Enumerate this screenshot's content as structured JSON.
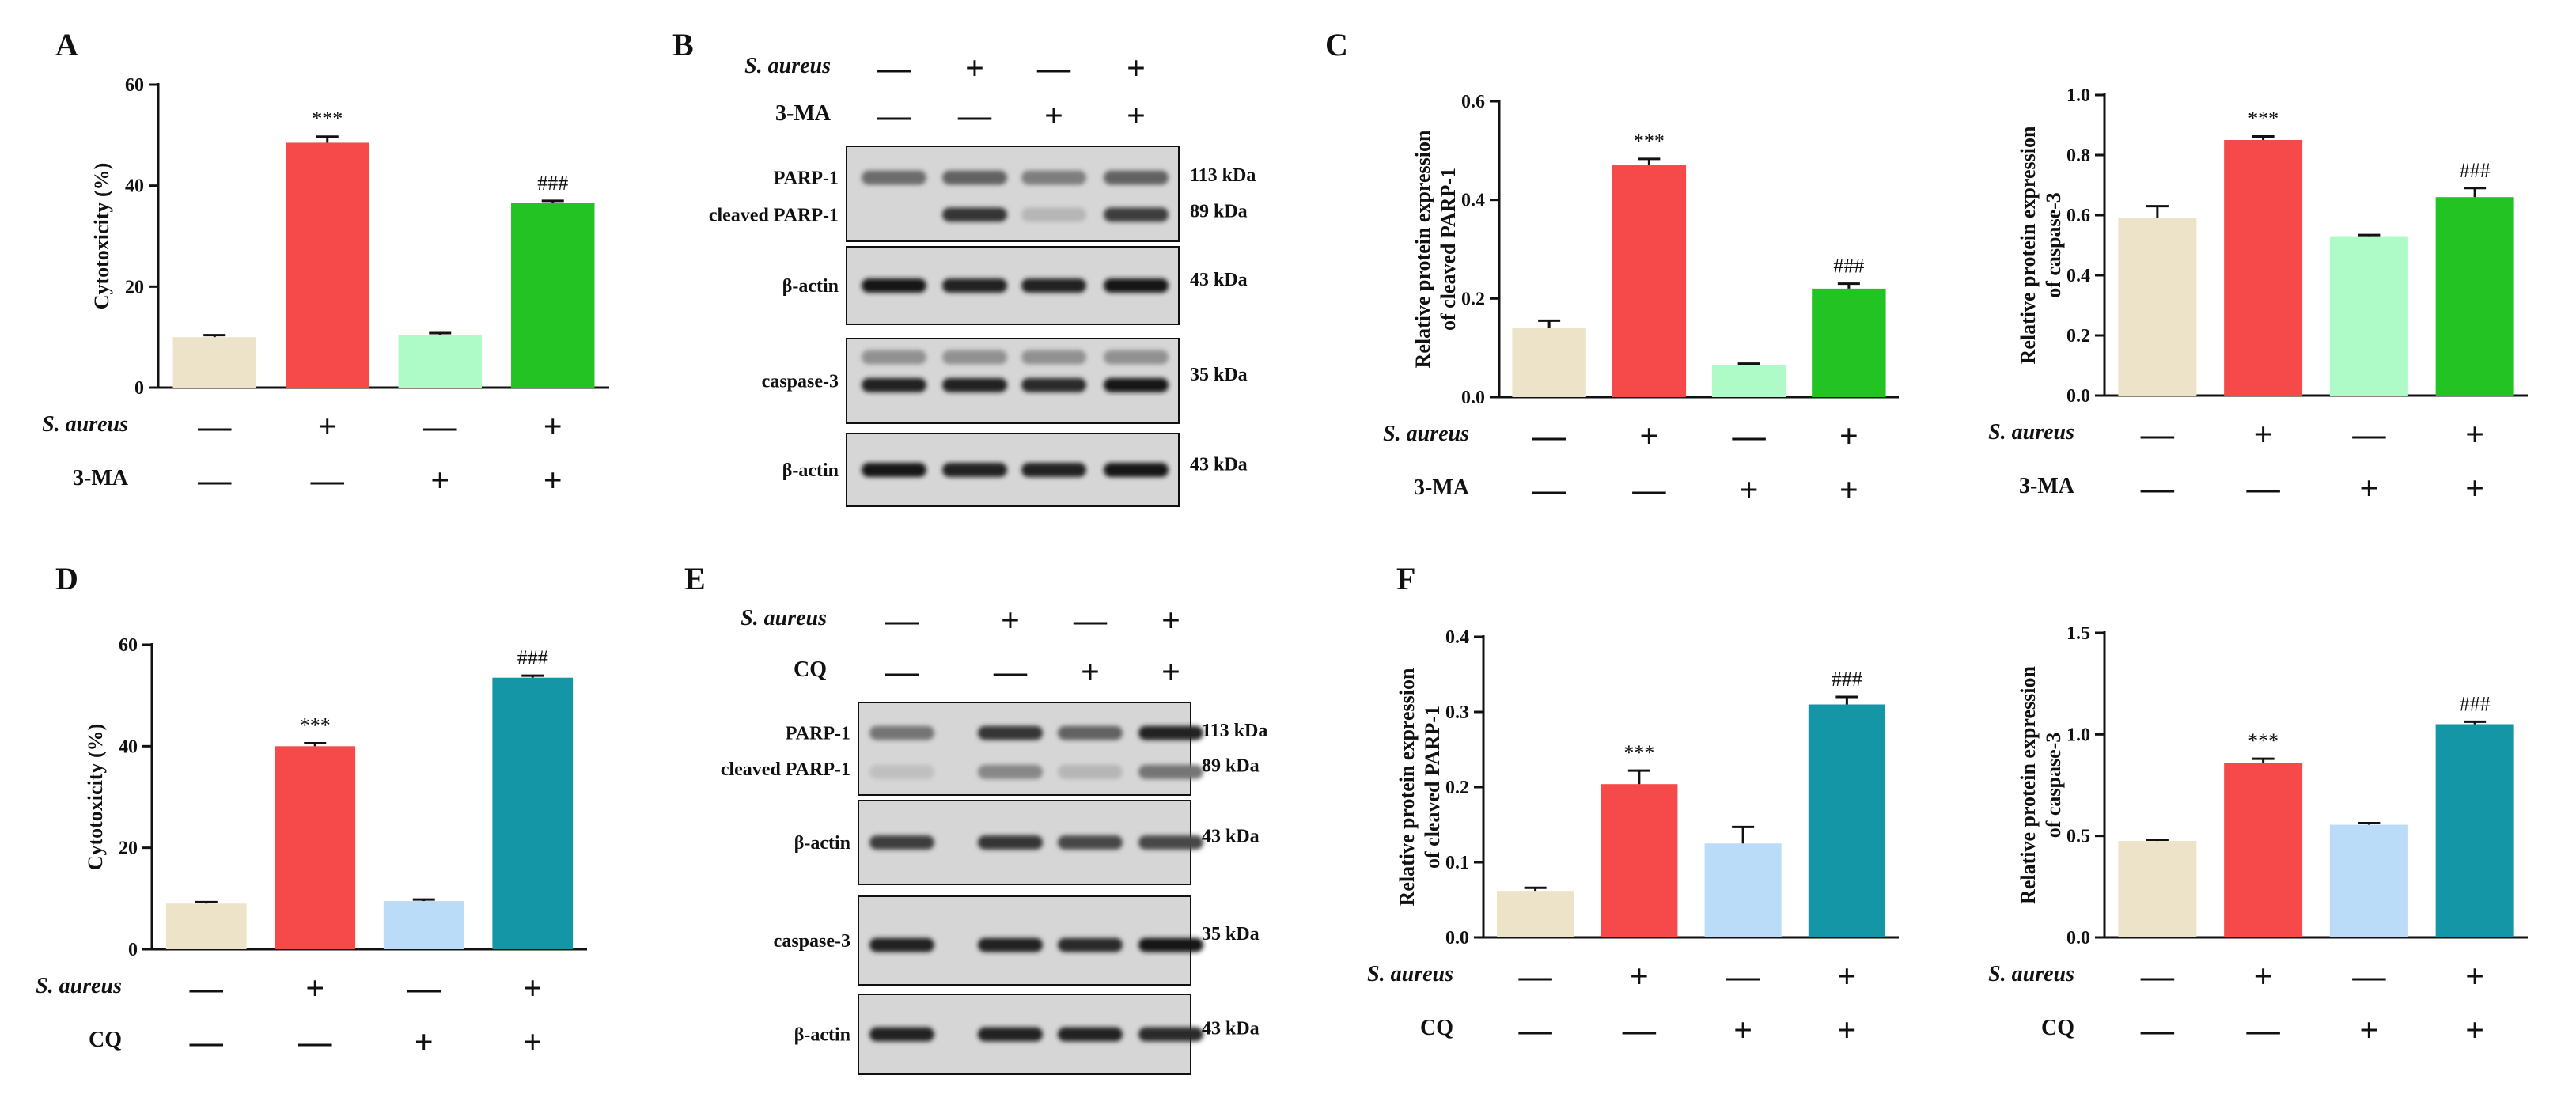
{
  "panels": [
    {
      "id": "A",
      "letter": "A",
      "lx": 70,
      "ly": 70
    },
    {
      "id": "B",
      "letter": "B",
      "lx": 850,
      "ly": 70
    },
    {
      "id": "C",
      "letter": "C",
      "lx": 1675,
      "ly": 70
    },
    {
      "id": "D",
      "letter": "D",
      "lx": 70,
      "ly": 745
    },
    {
      "id": "E",
      "letter": "E",
      "lx": 865,
      "ly": 745
    },
    {
      "id": "F",
      "letter": "F",
      "lx": 1765,
      "ly": 745
    }
  ],
  "chart_data": [
    {
      "type": "bar",
      "panel": "A",
      "ylabel": "Cytotoxicity (%)",
      "ylim": [
        0,
        60
      ],
      "yticks": [
        "0",
        "20",
        "40",
        "60"
      ],
      "values": [
        10,
        48.5,
        10.5,
        36.5
      ],
      "errors": [
        0.4,
        1.2,
        0.3,
        0.5
      ],
      "colors": [
        "#EDE3C8",
        "#F64A4A",
        "#AEFBC8",
        "#22C322"
      ],
      "annotations": [
        "",
        "***",
        "",
        "###"
      ],
      "rows": [
        {
          "label": "S. aureus",
          "italic": true,
          "signs": [
            "—",
            "+",
            "—",
            "+"
          ]
        },
        {
          "label": "3-MA",
          "italic": false,
          "signs": [
            "—",
            "—",
            "+",
            "+"
          ]
        }
      ],
      "box": {
        "x0": 200,
        "x1": 770,
        "y0": 107,
        "y1": 490
      }
    },
    {
      "type": "bar",
      "panel": "C-left",
      "ylabel": [
        "Relative protein expression",
        "of cleaved PARP-1"
      ],
      "ylim": [
        0,
        0.6
      ],
      "yticks": [
        "0.0",
        "0.2",
        "0.4",
        "0.6"
      ],
      "values": [
        0.14,
        0.47,
        0.065,
        0.22
      ],
      "errors": [
        0.015,
        0.013,
        0.003,
        0.01
      ],
      "colors": [
        "#EDE3C8",
        "#F64A4A",
        "#AEFBC8",
        "#22C322"
      ],
      "annotations": [
        "",
        "***",
        "",
        "###"
      ],
      "rows": [
        {
          "label": "S. aureus",
          "italic": true,
          "signs": [
            "—",
            "+",
            "—",
            "+"
          ]
        },
        {
          "label": "3-MA",
          "italic": false,
          "signs": [
            "—",
            "—",
            "+",
            "+"
          ]
        }
      ],
      "box": {
        "x0": 1895,
        "x1": 2400,
        "y0": 128,
        "y1": 502
      }
    },
    {
      "type": "bar",
      "panel": "C-right",
      "ylabel": [
        "Relative protein expression",
        "of caspase-3"
      ],
      "ylim": [
        0,
        1.0
      ],
      "yticks": [
        "0.0",
        "0.2",
        "0.4",
        "0.6",
        "0.8",
        "1.0"
      ],
      "values": [
        0.59,
        0.85,
        0.53,
        0.66
      ],
      "errors": [
        0.04,
        0.012,
        0.004,
        0.03
      ],
      "colors": [
        "#EDE3C8",
        "#F64A4A",
        "#AEFBC8",
        "#22C322"
      ],
      "annotations": [
        "",
        "***",
        "",
        "###"
      ],
      "rows": [
        {
          "label": "S. aureus",
          "italic": true,
          "signs": [
            "—",
            "+",
            "—",
            "+"
          ]
        },
        {
          "label": "3-MA",
          "italic": false,
          "signs": [
            "—",
            "—",
            "+",
            "+"
          ]
        }
      ],
      "box": {
        "x0": 2660,
        "x1": 3195,
        "y0": 120,
        "y1": 500
      }
    },
    {
      "type": "bar",
      "panel": "D",
      "ylabel": "Cytotoxicity (%)",
      "ylim": [
        0,
        60
      ],
      "yticks": [
        "0",
        "20",
        "40",
        "60"
      ],
      "values": [
        9,
        40,
        9.5,
        53.5
      ],
      "errors": [
        0.3,
        0.6,
        0.3,
        0.4
      ],
      "colors": [
        "#EDE3C8",
        "#F64A4A",
        "#BBDCF8",
        "#1596A6"
      ],
      "annotations": [
        "",
        "***",
        "",
        "###"
      ],
      "rows": [
        {
          "label": "S. aureus",
          "italic": true,
          "signs": [
            "—",
            "+",
            "—",
            "+"
          ]
        },
        {
          "label": "CQ",
          "italic": false,
          "signs": [
            "—",
            "—",
            "+",
            "+"
          ]
        }
      ],
      "box": {
        "x0": 192,
        "x1": 742,
        "y0": 815,
        "y1": 1200
      }
    },
    {
      "type": "bar",
      "panel": "F-left",
      "ylabel": [
        "Relative protein expression",
        "of cleaved PARP-1"
      ],
      "ylim": [
        0,
        0.4
      ],
      "yticks": [
        "0.0",
        "0.1",
        "0.2",
        "0.3",
        "0.4"
      ],
      "values": [
        0.062,
        0.204,
        0.125,
        0.31
      ],
      "errors": [
        0.004,
        0.018,
        0.022,
        0.01
      ],
      "colors": [
        "#EDE3C8",
        "#F64A4A",
        "#BBDCF8",
        "#1596A6"
      ],
      "annotations": [
        "",
        "***",
        "",
        "###"
      ],
      "rows": [
        {
          "label": "S. aureus",
          "italic": true,
          "signs": [
            "—",
            "+",
            "—",
            "+"
          ]
        },
        {
          "label": "CQ",
          "italic": false,
          "signs": [
            "—",
            "—",
            "+",
            "+"
          ]
        }
      ],
      "box": {
        "x0": 1875,
        "x1": 2400,
        "y0": 805,
        "y1": 1185
      }
    },
    {
      "type": "bar",
      "panel": "F-right",
      "ylabel": [
        "Relative protein expression",
        "of caspase-3"
      ],
      "ylim": [
        0,
        1.5
      ],
      "yticks": [
        "0.0",
        "0.5",
        "1.0",
        "1.5"
      ],
      "values": [
        0.475,
        0.86,
        0.555,
        1.05
      ],
      "errors": [
        0.006,
        0.02,
        0.008,
        0.012
      ],
      "colors": [
        "#EDE3C8",
        "#F64A4A",
        "#BBDCF8",
        "#1596A6"
      ],
      "annotations": [
        "",
        "***",
        "",
        "###"
      ],
      "rows": [
        {
          "label": "S. aureus",
          "italic": true,
          "signs": [
            "—",
            "+",
            "—",
            "+"
          ]
        },
        {
          "label": "CQ",
          "italic": false,
          "signs": [
            "—",
            "—",
            "+",
            "+"
          ]
        }
      ],
      "box": {
        "x0": 2660,
        "x1": 3195,
        "y0": 800,
        "y1": 1185
      }
    }
  ],
  "blots": [
    {
      "panel": "B",
      "header": [
        {
          "label": "S. aureus",
          "italic": true,
          "signs": [
            "—",
            "+",
            "—",
            "+"
          ]
        },
        {
          "label": "3-MA",
          "italic": false,
          "signs": [
            "—",
            "—",
            "+",
            "+"
          ]
        }
      ],
      "header_lx": 1050,
      "header_ys": [
        92,
        152
      ],
      "lane_xs": [
        1130,
        1232,
        1332,
        1436
      ],
      "bx0": 1070,
      "bx1": 1490,
      "strips": [
        {
          "labels": [
            "PARP-1",
            "cleaved PARP-1"
          ],
          "kda": [
            "113 kDa",
            "89 kDa"
          ],
          "y0": 185,
          "y1": 305,
          "bands": [
            {
              "rel": 0.33,
              "int": [
                0.5,
                0.55,
                0.4,
                0.55
              ]
            },
            {
              "rel": 0.72,
              "int": [
                0.0,
                0.8,
                0.1,
                0.75
              ]
            }
          ]
        },
        {
          "labels": [
            "β-actin"
          ],
          "kda": [
            "43 kDa"
          ],
          "y0": 312,
          "y1": 410,
          "bands": [
            {
              "rel": 0.5,
              "int": [
                0.95,
                0.9,
                0.9,
                0.95
              ]
            }
          ]
        },
        {
          "labels": [
            "caspase-3"
          ],
          "kda": [
            "35 kDa"
          ],
          "y0": 428,
          "y1": 535,
          "bands": [
            {
              "rel": 0.22,
              "int": [
                0.3,
                0.3,
                0.3,
                0.3
              ]
            },
            {
              "rel": 0.55,
              "int": [
                0.9,
                0.9,
                0.85,
                0.95
              ]
            }
          ]
        },
        {
          "labels": [
            "β-actin"
          ],
          "kda": [
            "43 kDa"
          ],
          "y0": 548,
          "y1": 640,
          "bands": [
            {
              "rel": 0.5,
              "int": [
                0.95,
                0.9,
                0.9,
                0.95
              ]
            }
          ]
        }
      ]
    },
    {
      "panel": "E",
      "header": [
        {
          "label": "S. aureus",
          "italic": true,
          "signs": [
            "—",
            "+",
            "—",
            "+"
          ]
        },
        {
          "label": "CQ",
          "italic": false,
          "signs": [
            "—",
            "—",
            "+",
            "+"
          ]
        }
      ],
      "header_lx": 1045,
      "header_ys": [
        790,
        855
      ],
      "lane_xs": [
        1140,
        1277,
        1378,
        1480
      ],
      "bx0": 1085,
      "bx1": 1505,
      "strips": [
        {
          "labels": [
            "PARP-1",
            "cleaved PARP-1"
          ],
          "kda": [
            "113 kDa",
            "89 kDa"
          ],
          "y0": 888,
          "y1": 1005,
          "bands": [
            {
              "rel": 0.33,
              "int": [
                0.45,
                0.8,
                0.55,
                0.9
              ]
            },
            {
              "rel": 0.75,
              "int": [
                0.05,
                0.35,
                0.1,
                0.45
              ]
            }
          ]
        },
        {
          "labels": [
            "β-actin"
          ],
          "kda": [
            "43 kDa"
          ],
          "y0": 1012,
          "y1": 1118,
          "bands": [
            {
              "rel": 0.5,
              "int": [
                0.75,
                0.8,
                0.7,
                0.7
              ]
            }
          ]
        },
        {
          "labels": [
            "caspase-3"
          ],
          "kda": [
            "35 kDa"
          ],
          "y0": 1133,
          "y1": 1245,
          "bands": [
            {
              "rel": 0.55,
              "int": [
                0.9,
                0.9,
                0.85,
                0.95
              ]
            }
          ]
        },
        {
          "labels": [
            "β-actin"
          ],
          "kda": [
            "43 kDa"
          ],
          "y0": 1257,
          "y1": 1358,
          "bands": [
            {
              "rel": 0.5,
              "int": [
                0.9,
                0.9,
                0.9,
                0.85
              ]
            }
          ]
        }
      ]
    }
  ]
}
